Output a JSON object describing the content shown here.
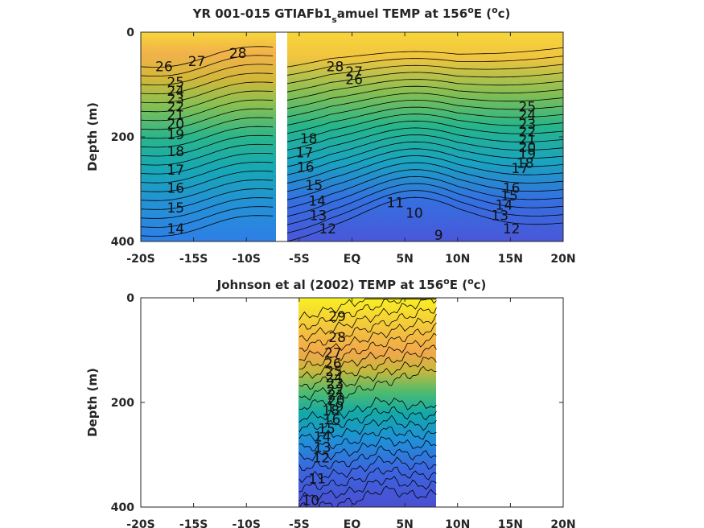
{
  "chart_data": [
    {
      "type": "heatmap",
      "title_prefix": "YR 001-015 GTIAFb1",
      "title_sub": "s",
      "title_mid": "amuel TEMP at 156",
      "title_sup": "o",
      "title_e": "E (",
      "title_sup2": "o",
      "title_end": "c)",
      "ylabel": "Depth (m)",
      "x_ticks": [
        "-20S",
        "-15S",
        "-10S",
        "-5S",
        "EQ",
        "5N",
        "10N",
        "15N",
        "20N"
      ],
      "x_tick_values": [
        -20,
        -15,
        -10,
        -5,
        0,
        5,
        10,
        15,
        20
      ],
      "y_ticks": [
        "0",
        "200",
        "400"
      ],
      "y_tick_values": [
        0,
        200,
        400
      ],
      "xlim": [
        -20,
        20
      ],
      "ylim": [
        0,
        400
      ],
      "y_reversed": true,
      "data_gap_lat": [
        -7.5,
        -6.5
      ],
      "contour_labels": [
        {
          "lat": -17.8,
          "depth": 65,
          "text": "26"
        },
        {
          "lat": -14.7,
          "depth": 55,
          "text": "27"
        },
        {
          "lat": -10.8,
          "depth": 40,
          "text": "28"
        },
        {
          "lat": -16.7,
          "depth": 95,
          "text": "25"
        },
        {
          "lat": -16.7,
          "depth": 112,
          "text": "24"
        },
        {
          "lat": -16.7,
          "depth": 127,
          "text": "23"
        },
        {
          "lat": -16.7,
          "depth": 142,
          "text": "22"
        },
        {
          "lat": -16.7,
          "depth": 158,
          "text": "21"
        },
        {
          "lat": -16.7,
          "depth": 175,
          "text": "20"
        },
        {
          "lat": -16.7,
          "depth": 195,
          "text": "19"
        },
        {
          "lat": -16.7,
          "depth": 228,
          "text": "18"
        },
        {
          "lat": -16.7,
          "depth": 263,
          "text": "17"
        },
        {
          "lat": -16.7,
          "depth": 298,
          "text": "16"
        },
        {
          "lat": -16.7,
          "depth": 335,
          "text": "15"
        },
        {
          "lat": -16.7,
          "depth": 375,
          "text": "14"
        },
        {
          "lat": -1.6,
          "depth": 65,
          "text": "28"
        },
        {
          "lat": 0.2,
          "depth": 75,
          "text": "27"
        },
        {
          "lat": 0.2,
          "depth": 90,
          "text": "26"
        },
        {
          "lat": -4.1,
          "depth": 203,
          "text": "18"
        },
        {
          "lat": -4.5,
          "depth": 230,
          "text": "17"
        },
        {
          "lat": -4.4,
          "depth": 258,
          "text": "16"
        },
        {
          "lat": -3.6,
          "depth": 292,
          "text": "15"
        },
        {
          "lat": -3.3,
          "depth": 322,
          "text": "14"
        },
        {
          "lat": -3.2,
          "depth": 350,
          "text": "13"
        },
        {
          "lat": -2.3,
          "depth": 375,
          "text": "12"
        },
        {
          "lat": 4.1,
          "depth": 325,
          "text": "11"
        },
        {
          "lat": 5.9,
          "depth": 345,
          "text": "10"
        },
        {
          "lat": 8.2,
          "depth": 388,
          "text": "9"
        },
        {
          "lat": 16.6,
          "depth": 142,
          "text": "25"
        },
        {
          "lat": 16.6,
          "depth": 158,
          "text": "24"
        },
        {
          "lat": 16.6,
          "depth": 175,
          "text": "23"
        },
        {
          "lat": 16.6,
          "depth": 190,
          "text": "22"
        },
        {
          "lat": 16.6,
          "depth": 205,
          "text": "21"
        },
        {
          "lat": 16.6,
          "depth": 220,
          "text": "20"
        },
        {
          "lat": 16.6,
          "depth": 232,
          "text": "19"
        },
        {
          "lat": 16.4,
          "depth": 250,
          "text": "18"
        },
        {
          "lat": 15.9,
          "depth": 260,
          "text": "17"
        },
        {
          "lat": 15.1,
          "depth": 298,
          "text": "16"
        },
        {
          "lat": 14.9,
          "depth": 312,
          "text": "15"
        },
        {
          "lat": 14.4,
          "depth": 330,
          "text": "14"
        },
        {
          "lat": 14.0,
          "depth": 350,
          "text": "13"
        },
        {
          "lat": 15.1,
          "depth": 375,
          "text": "12"
        }
      ]
    },
    {
      "type": "heatmap",
      "title_prefix": "Johnson et al (2002) TEMP at 156",
      "title_sup": "o",
      "title_e": "E (",
      "title_sup2": "o",
      "title_end": "c)",
      "ylabel": "Depth (m)",
      "x_ticks": [
        "-20S",
        "-15S",
        "-10S",
        "-5S",
        "EQ",
        "5N",
        "10N",
        "15N",
        "20N"
      ],
      "x_tick_values": [
        -20,
        -15,
        -10,
        -5,
        0,
        5,
        10,
        15,
        20
      ],
      "y_ticks": [
        "0",
        "200",
        "400"
      ],
      "y_tick_values": [
        0,
        200,
        400
      ],
      "xlim": [
        -20,
        20
      ],
      "ylim": [
        0,
        400
      ],
      "y_reversed": true,
      "data_lat_range": [
        -5,
        8
      ],
      "contour_labels": [
        {
          "lat": -1.4,
          "depth": 35,
          "text": "29"
        },
        {
          "lat": -1.4,
          "depth": 75,
          "text": "28"
        },
        {
          "lat": -1.8,
          "depth": 105,
          "text": "27"
        },
        {
          "lat": -1.8,
          "depth": 125,
          "text": "26"
        },
        {
          "lat": -1.7,
          "depth": 140,
          "text": "25"
        },
        {
          "lat": -1.7,
          "depth": 152,
          "text": "24"
        },
        {
          "lat": -1.6,
          "depth": 164,
          "text": "23"
        },
        {
          "lat": -1.6,
          "depth": 175,
          "text": "22"
        },
        {
          "lat": -1.5,
          "depth": 185,
          "text": "21"
        },
        {
          "lat": -1.5,
          "depth": 196,
          "text": "20"
        },
        {
          "lat": -1.6,
          "depth": 208,
          "text": "19"
        },
        {
          "lat": -2.0,
          "depth": 215,
          "text": "18"
        },
        {
          "lat": -1.9,
          "depth": 232,
          "text": "16"
        },
        {
          "lat": -2.4,
          "depth": 250,
          "text": "15"
        },
        {
          "lat": -2.8,
          "depth": 265,
          "text": "14"
        },
        {
          "lat": -2.8,
          "depth": 285,
          "text": "13"
        },
        {
          "lat": -2.9,
          "depth": 305,
          "text": "12"
        },
        {
          "lat": -3.3,
          "depth": 345,
          "text": "11"
        },
        {
          "lat": -3.9,
          "depth": 387,
          "text": "10"
        }
      ]
    }
  ]
}
